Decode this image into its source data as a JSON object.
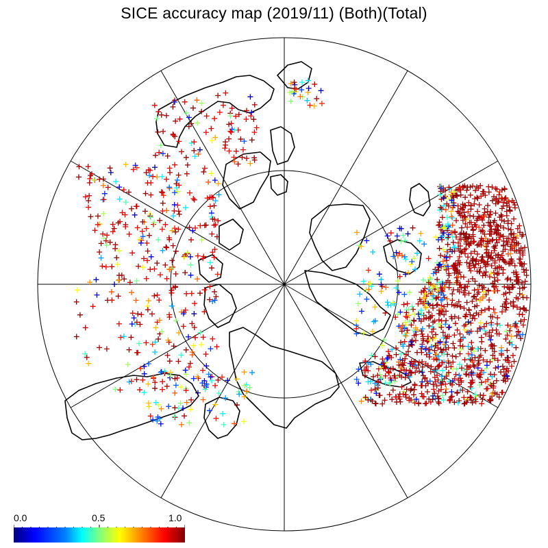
{
  "title": "SICE accuracy map (2019/11) (Both)(Total)",
  "colorbar": {
    "min_label": "0.0",
    "mid_label": "0.5",
    "max_label": "1.0",
    "range": [
      0.0,
      1.0
    ],
    "colormap": "jet"
  },
  "map": {
    "projection": "polar stereographic (north pole)",
    "marker": "+",
    "meridian_lines": 12,
    "parallel_circles": 2,
    "coastline_color": "#000000"
  }
}
